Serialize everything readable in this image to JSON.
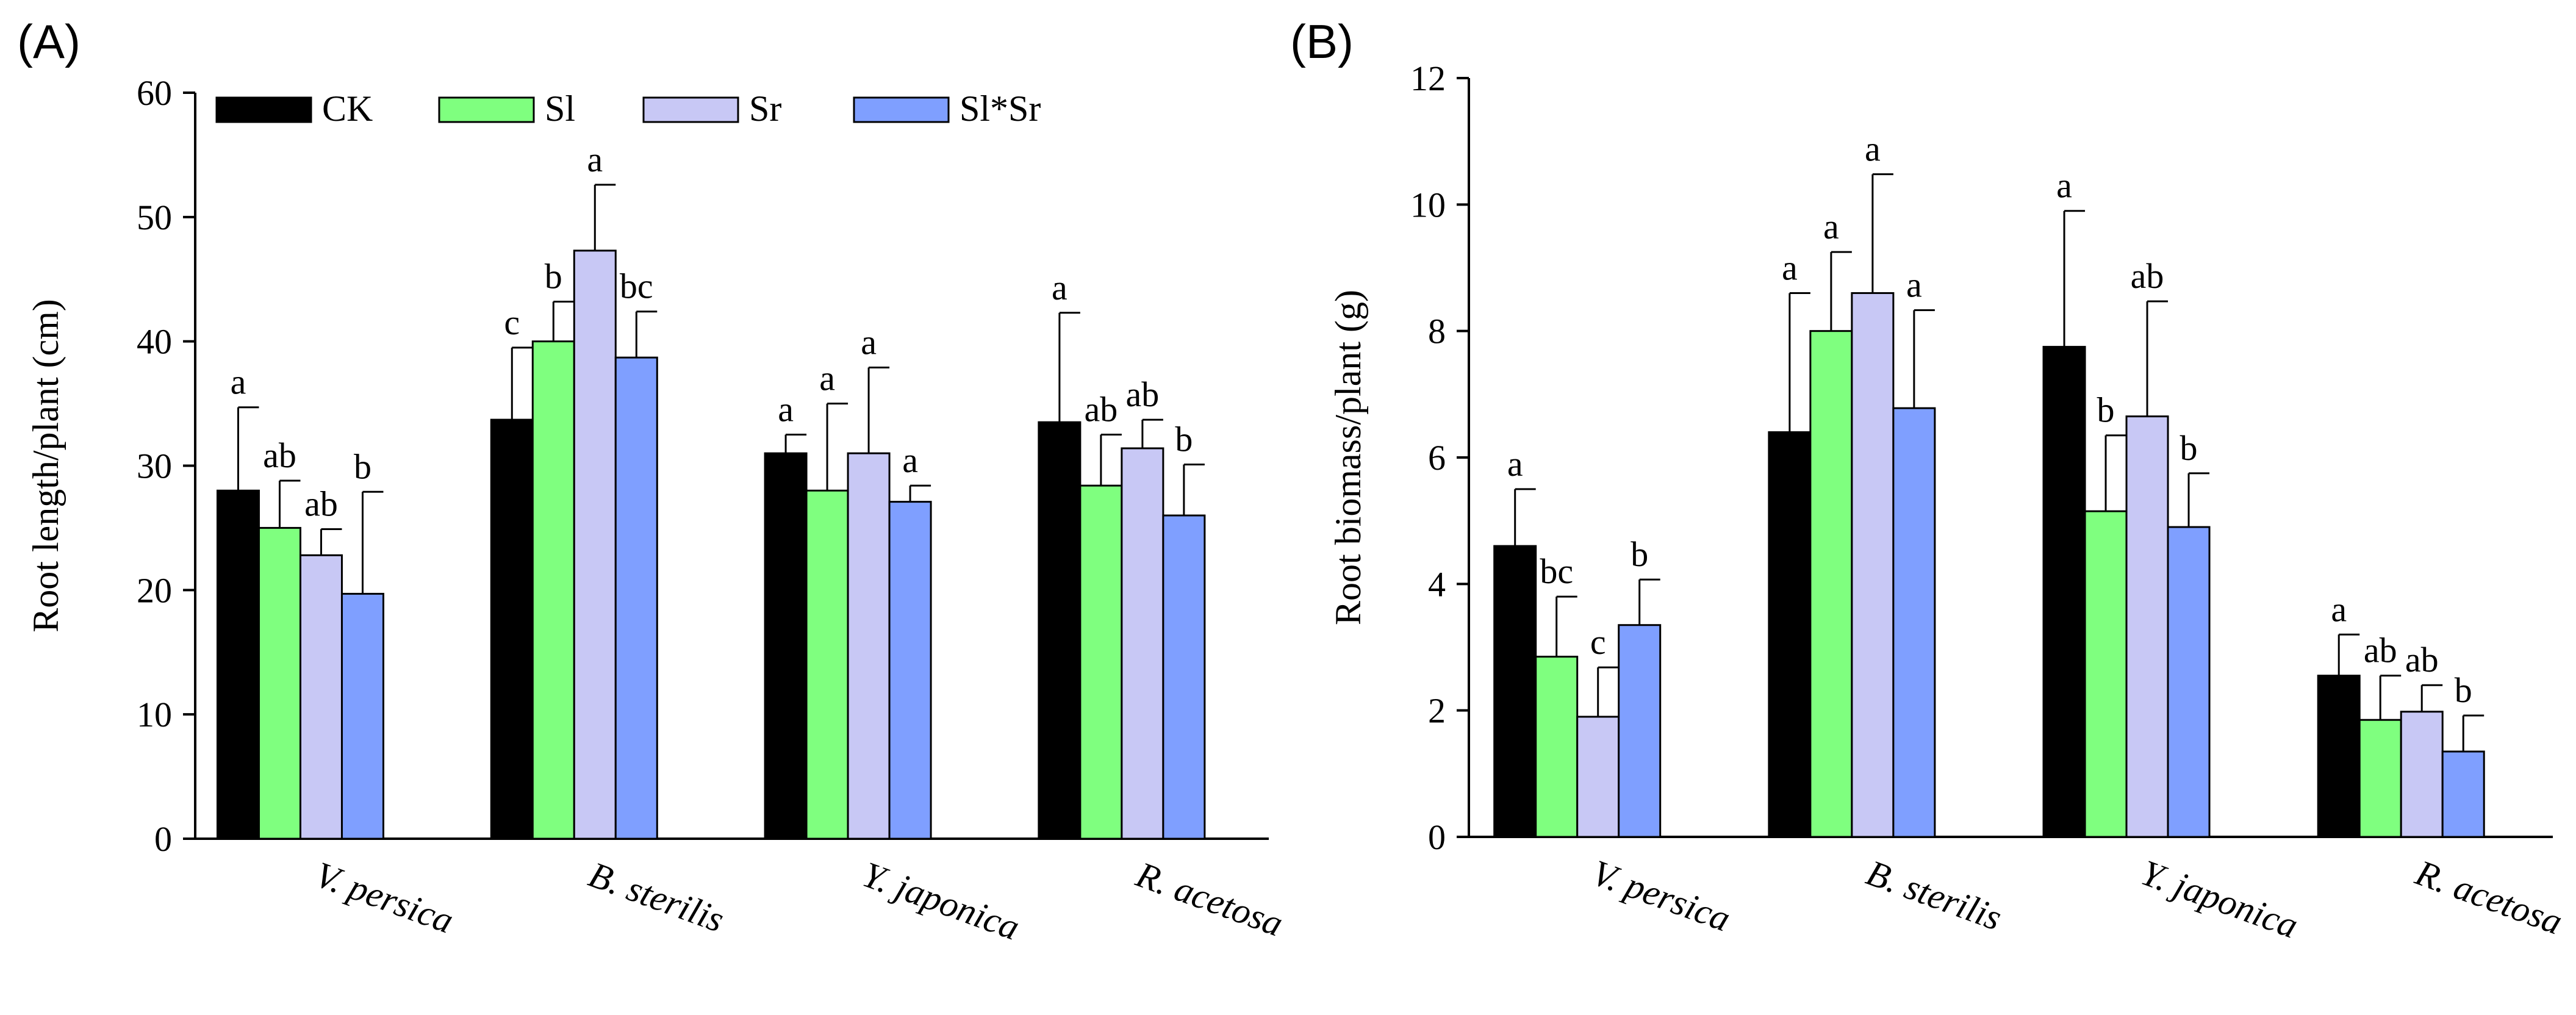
{
  "legend": [
    {
      "name": "CK",
      "color": "#000000"
    },
    {
      "name": "Sl",
      "color": "#7FFF7F"
    },
    {
      "name": "Sr",
      "color": "#C8C8F5"
    },
    {
      "name": "Sl*Sr",
      "color": "#7F9FFF"
    }
  ],
  "chart_data": [
    {
      "type": "bar",
      "panel_label": "(A)",
      "title": "",
      "xlabel": "",
      "ylabel": "Root length/plant (cm)",
      "ylim": [
        0,
        60
      ],
      "yticks": [
        0,
        10,
        20,
        30,
        40,
        50,
        60
      ],
      "categories": [
        "V. persica",
        "B. sterilis",
        "Y. japonica",
        "R. acetosa"
      ],
      "legend_position": "top",
      "series": [
        {
          "name": "CK",
          "values": [
            28,
            33.7,
            31,
            33.5
          ],
          "errors": [
            6.7,
            5.8,
            1.5,
            8.8
          ],
          "letters": [
            "a",
            "c",
            "a",
            "a"
          ]
        },
        {
          "name": "Sl",
          "values": [
            25,
            40,
            28,
            28.4
          ],
          "errors": [
            3.8,
            3.2,
            7,
            4.1
          ],
          "letters": [
            "ab",
            "b",
            "a",
            "ab"
          ]
        },
        {
          "name": "Sr",
          "values": [
            22.8,
            47.3,
            31,
            31.4
          ],
          "errors": [
            2.1,
            5.3,
            6.9,
            2.3
          ],
          "letters": [
            "ab",
            "a",
            "a",
            "ab"
          ]
        },
        {
          "name": "Sl*Sr",
          "values": [
            19.7,
            38.7,
            27.1,
            26
          ],
          "errors": [
            8.2,
            3.7,
            1.3,
            4.1
          ],
          "letters": [
            "b",
            "bc",
            "a",
            "b"
          ]
        }
      ]
    },
    {
      "type": "bar",
      "panel_label": "(B)",
      "title": "",
      "xlabel": "",
      "ylabel": "Root biomass/plant (g)",
      "ylim": [
        0,
        12
      ],
      "yticks": [
        0,
        2,
        4,
        6,
        8,
        10,
        12
      ],
      "categories": [
        "V. persica",
        "B. sterilis",
        "Y. japonica",
        "R. acetosa"
      ],
      "legend_position": "none",
      "series": [
        {
          "name": "CK",
          "values": [
            4.6,
            6.4,
            7.75,
            2.55
          ],
          "errors": [
            0.9,
            2.2,
            2.15,
            0.65
          ],
          "letters": [
            "a",
            "a",
            "a",
            "a"
          ]
        },
        {
          "name": "Sl",
          "values": [
            2.85,
            8,
            5.15,
            1.85
          ],
          "errors": [
            0.95,
            1.25,
            1.2,
            0.7
          ],
          "letters": [
            "bc",
            "a",
            "b",
            "ab"
          ]
        },
        {
          "name": "Sr",
          "values": [
            1.9,
            8.6,
            6.65,
            1.98
          ],
          "errors": [
            0.78,
            1.88,
            1.82,
            0.42
          ],
          "letters": [
            "c",
            "a",
            "ab",
            "ab"
          ]
        },
        {
          "name": "Sl*Sr",
          "values": [
            3.35,
            6.78,
            4.9,
            1.35
          ],
          "errors": [
            0.72,
            1.55,
            0.85,
            0.57
          ],
          "letters": [
            "b",
            "a",
            "b",
            "b"
          ]
        }
      ]
    }
  ]
}
